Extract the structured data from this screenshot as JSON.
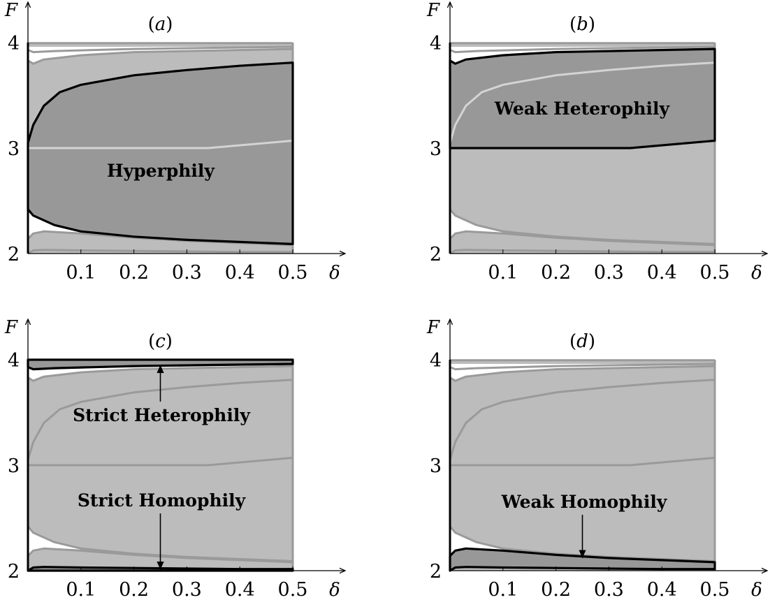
{
  "chart_data": [
    {
      "type": "area",
      "panel_label": "a",
      "xlabel": "δ",
      "ylabel": "F",
      "xlim": [
        0,
        0.5
      ],
      "ylim": [
        2,
        4
      ],
      "x_ticks": [
        "0.1",
        "0.2",
        "0.3",
        "0.4",
        "0.5"
      ],
      "y_ticks": [
        "2",
        "3",
        "4"
      ],
      "highlight": "hyperphily",
      "annotation": {
        "text": "Hyperphily",
        "arrow": false
      }
    },
    {
      "type": "area",
      "panel_label": "b",
      "xlabel": "δ",
      "ylabel": "F",
      "xlim": [
        0,
        0.5
      ],
      "ylim": [
        2,
        4
      ],
      "x_ticks": [
        "0.1",
        "0.2",
        "0.3",
        "0.4",
        "0.5"
      ],
      "y_ticks": [
        "2",
        "3",
        "4"
      ],
      "highlight": "weak_heterophily",
      "annotation": {
        "text": "Weak Heterophily",
        "arrow": false
      }
    },
    {
      "type": "area",
      "panel_label": "c",
      "xlabel": "δ",
      "ylabel": "F",
      "xlim": [
        0,
        0.5
      ],
      "ylim": [
        2,
        4
      ],
      "x_ticks": [
        "0.1",
        "0.2",
        "0.3",
        "0.4",
        "0.5"
      ],
      "y_ticks": [
        "2",
        "3",
        "4"
      ],
      "highlight": "strict",
      "annotations": [
        {
          "text": "Strict Heterophily",
          "arrow": true,
          "arrow_to": [
            0.25,
            3.95
          ]
        },
        {
          "text": "Strict Homophily",
          "arrow": true,
          "arrow_to": [
            0.25,
            2.01
          ]
        }
      ]
    },
    {
      "type": "area",
      "panel_label": "d",
      "xlabel": "δ",
      "ylabel": "F",
      "xlim": [
        0,
        0.5
      ],
      "ylim": [
        2,
        4
      ],
      "x_ticks": [
        "0.1",
        "0.2",
        "0.3",
        "0.4",
        "0.5"
      ],
      "y_ticks": [
        "2",
        "3",
        "4"
      ],
      "highlight": "weak_homophily",
      "annotation": {
        "text": "Weak Homophily",
        "arrow": true,
        "arrow_to": [
          0.25,
          2.12
        ]
      }
    }
  ],
  "curves": {
    "outer_top_lower": [
      [
        0,
        3.83
      ],
      [
        0.01,
        3.8
      ],
      [
        0.03,
        3.84
      ],
      [
        0.1,
        3.88
      ],
      [
        0.2,
        3.91
      ],
      [
        0.3,
        3.92
      ],
      [
        0.4,
        3.93
      ],
      [
        0.5,
        3.94
      ]
    ],
    "strict_het_lower": [
      [
        0,
        3.93
      ],
      [
        0.01,
        3.91
      ],
      [
        0.05,
        3.92
      ],
      [
        0.2,
        3.94
      ],
      [
        0.35,
        3.95
      ],
      [
        0.5,
        3.96
      ]
    ],
    "hyper_top": [
      [
        0,
        3.05
      ],
      [
        0.01,
        3.22
      ],
      [
        0.03,
        3.4
      ],
      [
        0.06,
        3.53
      ],
      [
        0.1,
        3.6
      ],
      [
        0.2,
        3.69
      ],
      [
        0.3,
        3.74
      ],
      [
        0.4,
        3.78
      ],
      [
        0.5,
        3.81
      ]
    ],
    "hyper_bottom": [
      [
        0,
        2.42
      ],
      [
        0.01,
        2.36
      ],
      [
        0.05,
        2.27
      ],
      [
        0.1,
        2.21
      ],
      [
        0.2,
        2.16
      ],
      [
        0.3,
        2.13
      ],
      [
        0.4,
        2.11
      ],
      [
        0.5,
        2.09
      ]
    ],
    "f3_line": [
      [
        0,
        3.0
      ],
      [
        0.34,
        3.0
      ],
      [
        0.5,
        3.07
      ]
    ],
    "bottom_white_upper": [
      [
        0,
        2.14
      ],
      [
        0.01,
        2.19
      ],
      [
        0.03,
        2.21
      ],
      [
        0.1,
        2.19
      ],
      [
        0.2,
        2.15
      ],
      [
        0.3,
        2.12
      ],
      [
        0.4,
        2.1
      ],
      [
        0.5,
        2.08
      ]
    ],
    "bottom_inner": [
      [
        0,
        2.0
      ],
      [
        0.01,
        2.03
      ],
      [
        0.03,
        2.035
      ],
      [
        0.1,
        2.03
      ],
      [
        0.2,
        2.025
      ],
      [
        0.3,
        2.02
      ],
      [
        0.4,
        2.015
      ],
      [
        0.5,
        2.015
      ]
    ]
  },
  "colors": {
    "light_fill": "#bcbcbc",
    "dark_fill": "#989898",
    "gray_edge": "#9a9a9a",
    "light_edge": "#d4d4d4",
    "black": "#000000"
  }
}
